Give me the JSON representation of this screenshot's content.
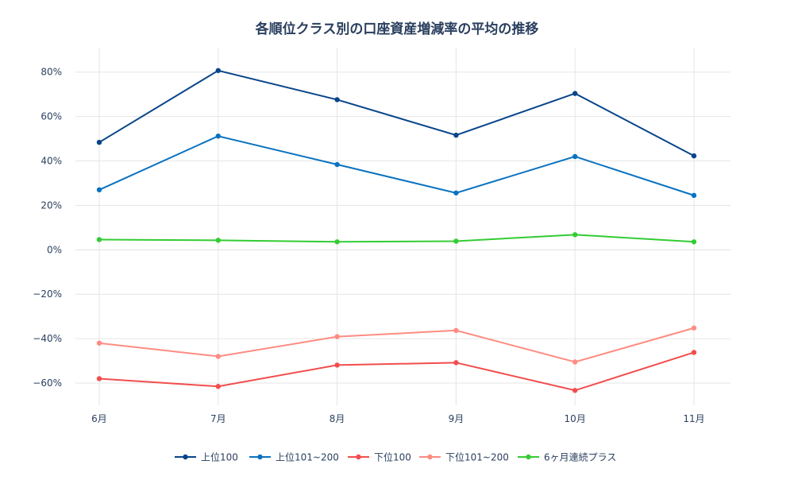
{
  "chart_data": {
    "type": "line",
    "title": "各順位クラス別の口座資産増減率の平均の推移",
    "xlabel": "",
    "ylabel": "",
    "categories": [
      "6月",
      "7月",
      "8月",
      "9月",
      "10月",
      "11月"
    ],
    "ylim": [
      -70,
      91
    ],
    "yticks": [
      -60,
      -40,
      -20,
      0,
      20,
      40,
      60,
      80
    ],
    "ytick_labels": [
      "−60%",
      "−40%",
      "−20%",
      "0%",
      "20%",
      "40%",
      "60%",
      "80%"
    ],
    "grid": true,
    "legend_position": "bottom",
    "series": [
      {
        "name": "上位100",
        "color": "#08458a",
        "values": [
          48.4,
          80.7,
          67.6,
          51.6,
          70.4,
          42.3
        ]
      },
      {
        "name": "上位101~200",
        "color": "#0a72c0",
        "values": [
          27.0,
          51.2,
          38.4,
          25.6,
          42.0,
          24.5
        ]
      },
      {
        "name": "下位100",
        "color": "#f24d4d",
        "values": [
          -58.0,
          -61.5,
          -51.9,
          -50.8,
          -63.3,
          -46.2
        ]
      },
      {
        "name": "下位101~200",
        "color": "#ff8c82",
        "values": [
          -42.0,
          -48.0,
          -39.1,
          -36.3,
          -50.5,
          -35.2
        ]
      },
      {
        "name": "6ヶ月連続プラス",
        "color": "#33cc33",
        "values": [
          4.6,
          4.3,
          3.6,
          3.9,
          6.8,
          3.6
        ]
      }
    ]
  }
}
